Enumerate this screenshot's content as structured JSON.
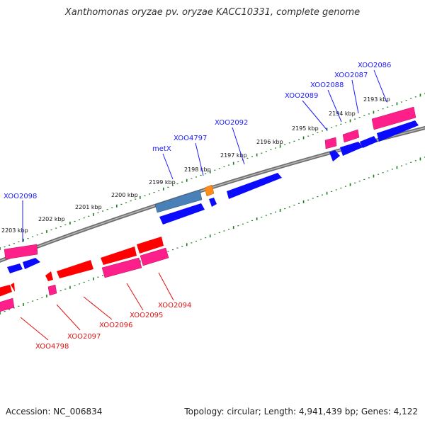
{
  "title": "Xanthomonas oryzae pv. oryzae KACC10331, complete genome",
  "footer": {
    "accession": "Accession: NC_006834",
    "summary": "Topology: circular; Length: 4,941,439 bp; Genes: 4,122"
  },
  "colors": {
    "forward_label": "#1a1aff",
    "reverse_label": "#e01010",
    "backbone": "#808080",
    "ticks": "#1a7a1a",
    "cds_blue": "#0a0aff",
    "cds_red": "#ff0000",
    "cds_pink": "#ff1f8a",
    "cds_steel": "#4a80b8",
    "cds_orange": "#ff8c1a"
  },
  "map": {
    "kbp_ticks": [
      "2203 kbp",
      "2202 kbp",
      "2201 kbp",
      "2200 kbp",
      "2199 kbp",
      "2198 kbp",
      "2197 kbp",
      "2196 kbp",
      "2195 kbp",
      "2194 kbp",
      "2193 kbp"
    ],
    "forward_gene_labels": [
      "XOO2098",
      "metX",
      "XOO4797",
      "XOO2092",
      "XOO2089",
      "XOO2088",
      "XOO2087",
      "XOO2086"
    ],
    "reverse_gene_labels": [
      "XOO4798",
      "XOO2097",
      "XOO2096",
      "XOO2095",
      "XOO2094"
    ]
  }
}
